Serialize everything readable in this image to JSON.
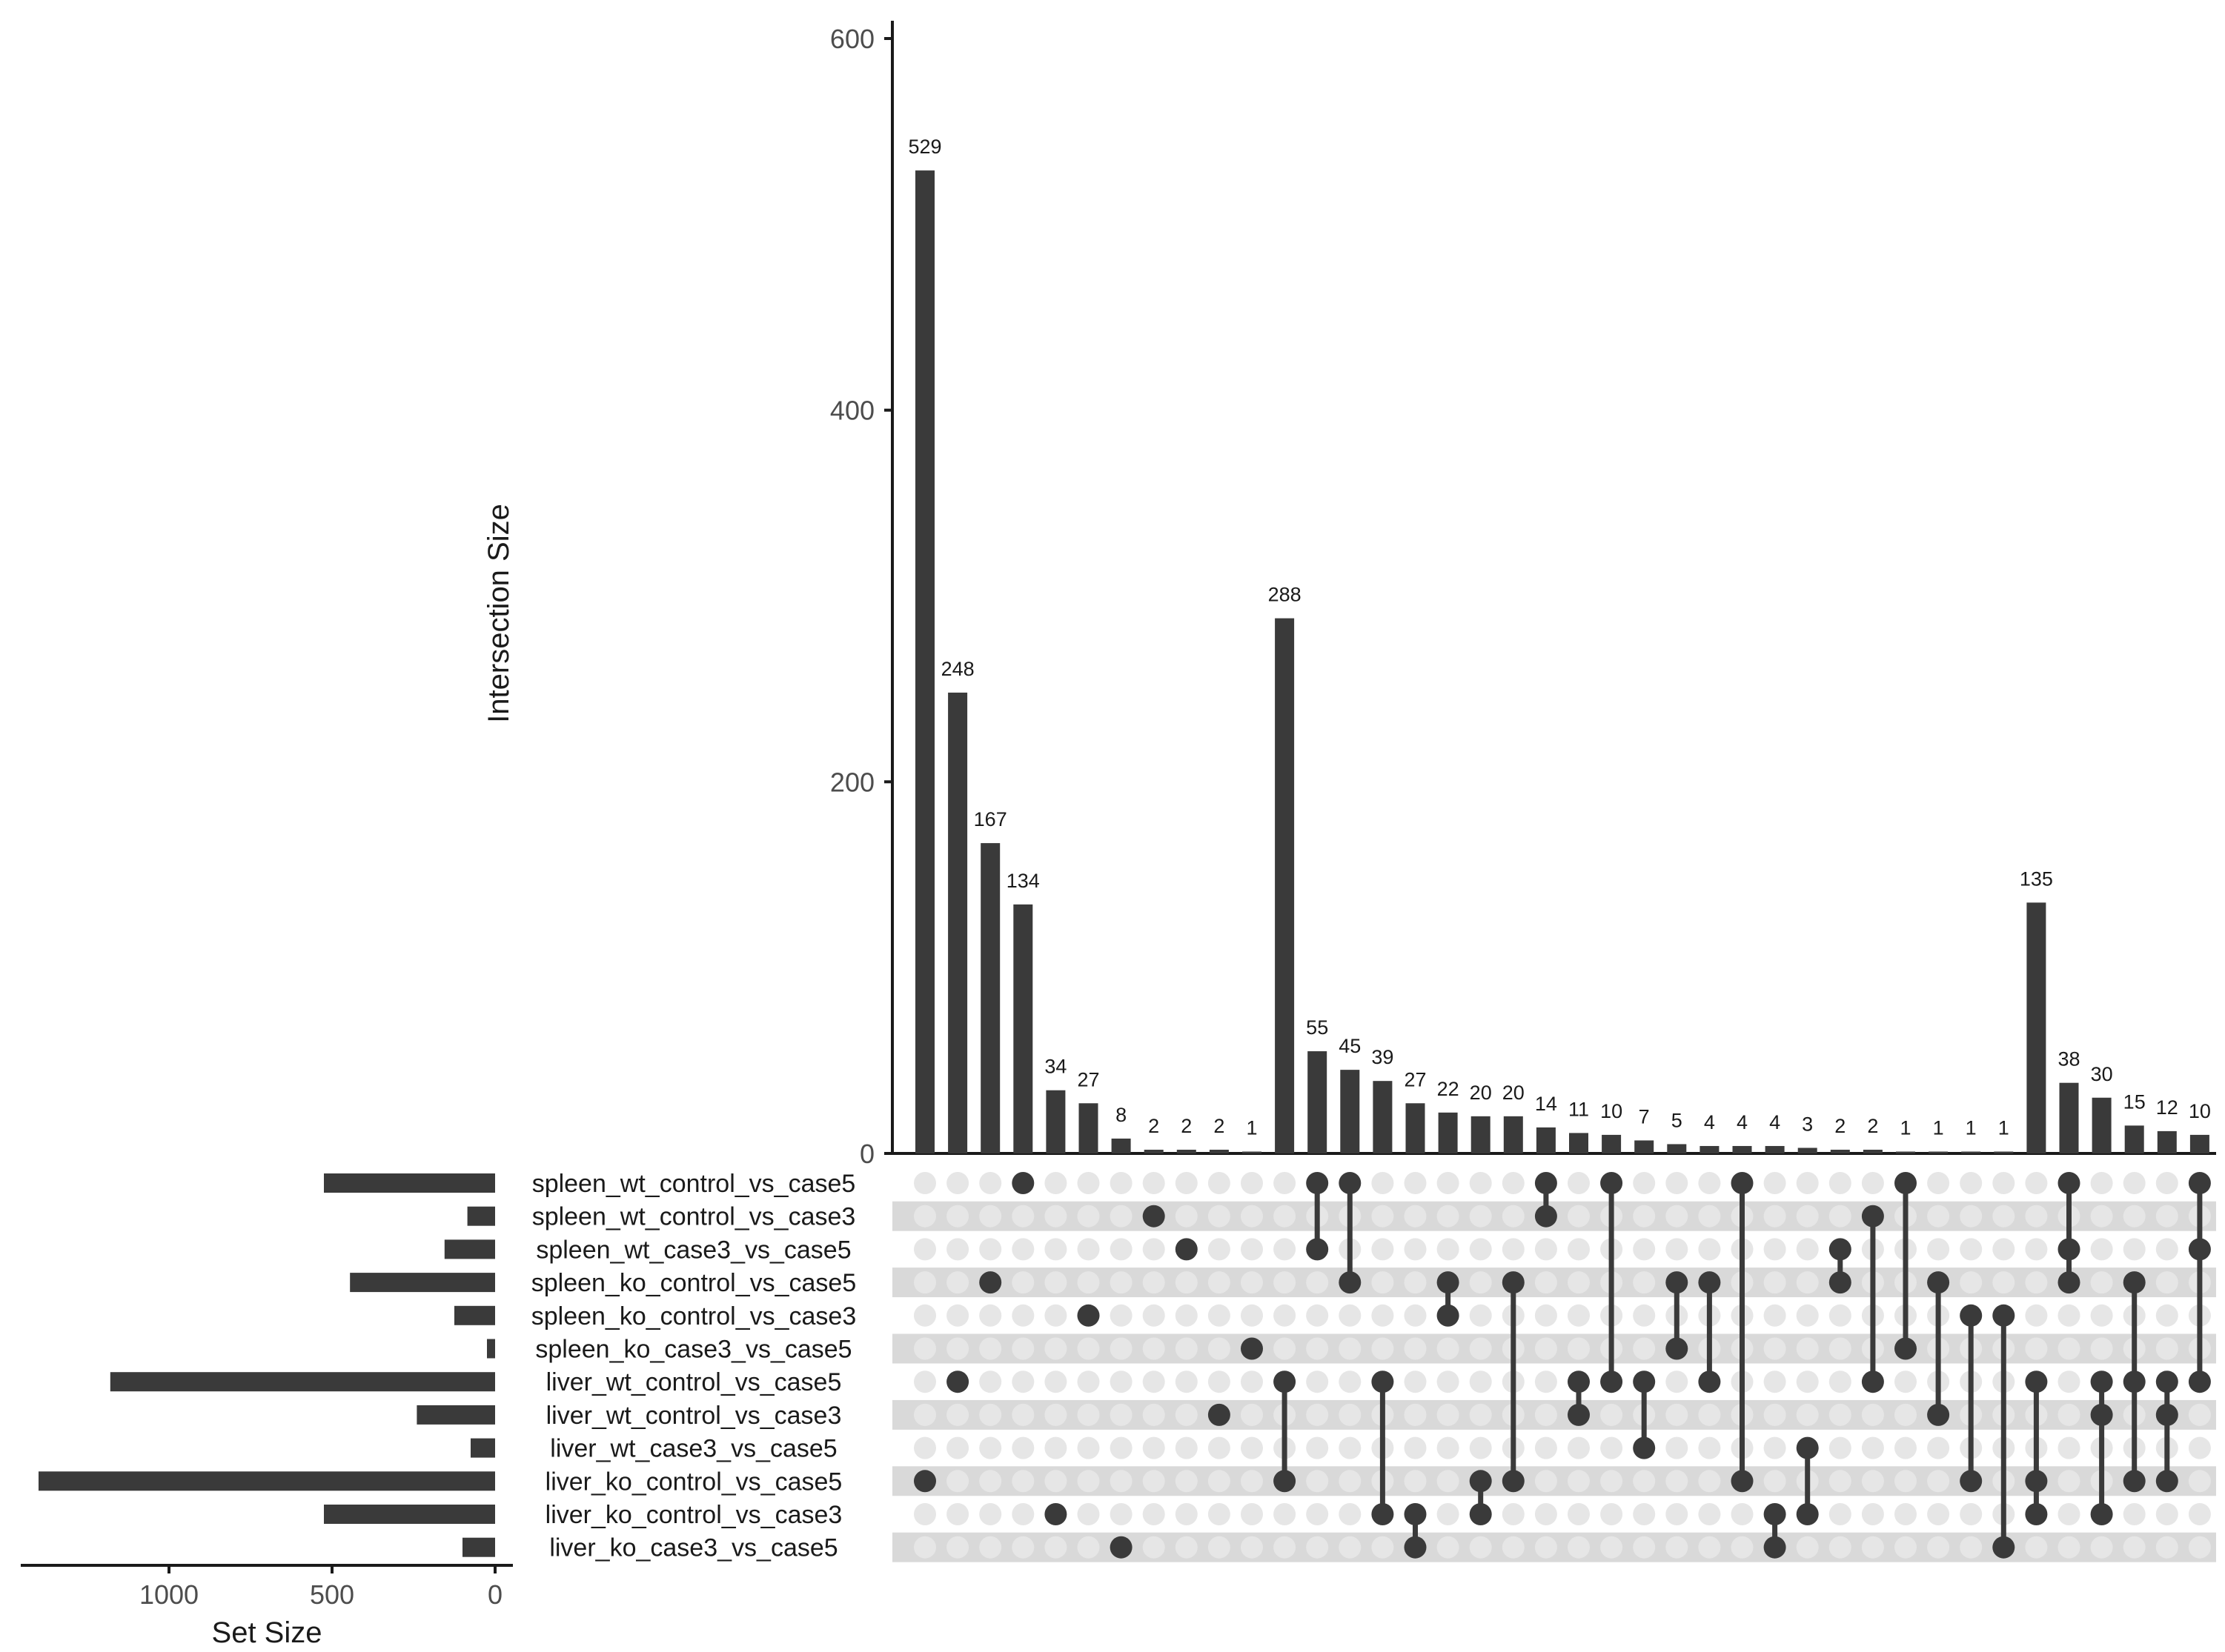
{
  "chart_data": {
    "type": "upset",
    "title": "",
    "ylabel": "Intersection Size",
    "ylim": [
      0,
      600
    ],
    "yticks": [
      0,
      200,
      400,
      600
    ],
    "set_size_label": "Set Size",
    "set_size_xlim": [
      0,
      1400
    ],
    "set_size_ticks": [
      1000,
      500,
      0
    ],
    "colors": {
      "bar": "#3a3a3a",
      "dot_active": "#3a3a3a",
      "dot_inactive": "#e6e6e6",
      "stripe": "#d9d9d9",
      "axis": "#1a1a1a"
    },
    "sets": [
      {
        "name": "spleen_wt_control_vs_case5",
        "size": 525
      },
      {
        "name": "spleen_wt_control_vs_case3",
        "size": 85
      },
      {
        "name": "spleen_wt_case3_vs_case5",
        "size": 155
      },
      {
        "name": "spleen_ko_control_vs_case5",
        "size": 445
      },
      {
        "name": "spleen_ko_control_vs_case3",
        "size": 125
      },
      {
        "name": "spleen_ko_case3_vs_case5",
        "size": 25
      },
      {
        "name": "liver_wt_control_vs_case5",
        "size": 1180
      },
      {
        "name": "liver_wt_control_vs_case3",
        "size": 240
      },
      {
        "name": "liver_wt_case3_vs_case5",
        "size": 75
      },
      {
        "name": "liver_ko_control_vs_case5",
        "size": 1400
      },
      {
        "name": "liver_ko_control_vs_case3",
        "size": 525
      },
      {
        "name": "liver_ko_case3_vs_case5",
        "size": 100
      }
    ],
    "intersections": [
      {
        "size": 529,
        "label": "529",
        "sets": [
          9
        ]
      },
      {
        "size": 248,
        "label": "248",
        "sets": [
          6
        ]
      },
      {
        "size": 167,
        "label": "167",
        "sets": [
          3
        ]
      },
      {
        "size": 134,
        "label": "134",
        "sets": [
          0
        ]
      },
      {
        "size": 34,
        "label": "34",
        "sets": [
          10
        ]
      },
      {
        "size": 27,
        "label": "27",
        "sets": [
          4
        ]
      },
      {
        "size": 8,
        "label": "8",
        "sets": [
          11
        ]
      },
      {
        "size": 2,
        "label": "2",
        "sets": [
          1
        ]
      },
      {
        "size": 2,
        "label": "2",
        "sets": [
          2
        ]
      },
      {
        "size": 2,
        "label": "2",
        "sets": [
          7
        ]
      },
      {
        "size": 1,
        "label": "1",
        "sets": [
          5
        ]
      },
      {
        "size": 288,
        "label": "288",
        "sets": [
          6,
          9
        ]
      },
      {
        "size": 55,
        "label": "55",
        "sets": [
          0,
          2
        ]
      },
      {
        "size": 45,
        "label": "45",
        "sets": [
          0,
          3
        ]
      },
      {
        "size": 39,
        "label": "39",
        "sets": [
          6,
          10
        ]
      },
      {
        "size": 27,
        "label": "27",
        "sets": [
          10,
          11
        ]
      },
      {
        "size": 22,
        "label": "22",
        "sets": [
          3,
          4
        ]
      },
      {
        "size": 20,
        "label": "20",
        "sets": [
          9,
          10
        ]
      },
      {
        "size": 20,
        "label": "20",
        "sets": [
          3,
          9
        ]
      },
      {
        "size": 14,
        "label": "14",
        "sets": [
          0,
          1
        ]
      },
      {
        "size": 11,
        "label": "11",
        "sets": [
          6,
          7
        ]
      },
      {
        "size": 10,
        "label": "10",
        "sets": [
          0,
          6
        ]
      },
      {
        "size": 7,
        "label": "7",
        "sets": [
          6,
          8
        ]
      },
      {
        "size": 5,
        "label": "5",
        "sets": [
          3,
          5
        ]
      },
      {
        "size": 4,
        "label": "4",
        "sets": [
          3,
          6
        ]
      },
      {
        "size": 4,
        "label": "4",
        "sets": [
          0,
          9
        ]
      },
      {
        "size": 4,
        "label": "4",
        "sets": [
          10,
          11
        ]
      },
      {
        "size": 3,
        "label": "3",
        "sets": [
          8,
          10
        ]
      },
      {
        "size": 2,
        "label": "2",
        "sets": [
          2,
          3
        ]
      },
      {
        "size": 2,
        "label": "2",
        "sets": [
          1,
          6
        ]
      },
      {
        "size": 1,
        "label": "1",
        "sets": [
          0,
          5
        ]
      },
      {
        "size": 1,
        "label": "1",
        "sets": [
          3,
          7
        ]
      },
      {
        "size": 1,
        "label": "1",
        "sets": [
          4,
          9
        ]
      },
      {
        "size": 1,
        "label": "1",
        "sets": [
          4,
          11
        ]
      },
      {
        "size": 135,
        "label": "135",
        "sets": [
          6,
          9,
          10
        ]
      },
      {
        "size": 38,
        "label": "38",
        "sets": [
          0,
          2,
          3
        ]
      },
      {
        "size": 30,
        "label": "30",
        "sets": [
          6,
          7,
          10
        ]
      },
      {
        "size": 15,
        "label": "15",
        "sets": [
          3,
          6,
          9
        ]
      },
      {
        "size": 12,
        "label": "12",
        "sets": [
          6,
          7,
          9
        ]
      },
      {
        "size": 10,
        "label": "10",
        "sets": [
          0,
          2,
          6
        ]
      }
    ]
  }
}
